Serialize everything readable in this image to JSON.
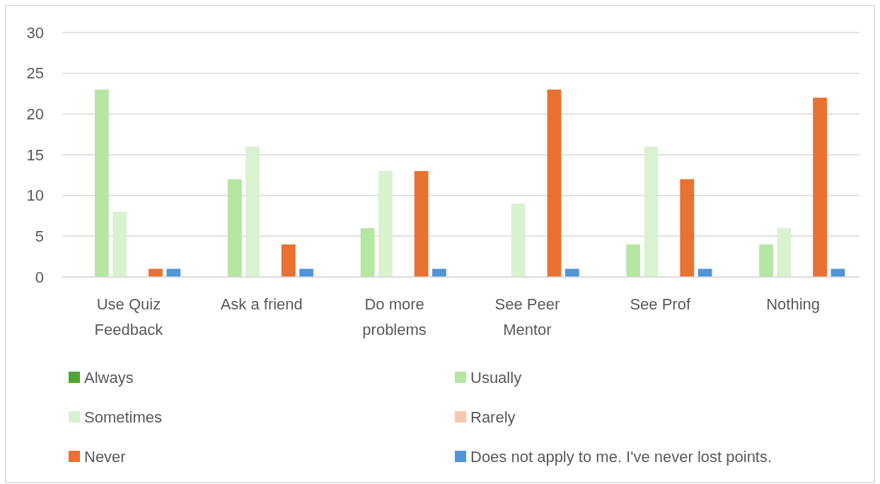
{
  "chart_data": {
    "type": "bar",
    "categories": [
      "Use Quiz Feedback",
      "Ask a friend",
      "Do more problems",
      "See Peer Mentor",
      "See Prof",
      "Nothing"
    ],
    "series": [
      {
        "name": "Always",
        "color": "#4ea72e",
        "values": [
          0,
          0,
          0,
          0,
          0,
          0
        ]
      },
      {
        "name": "Usually",
        "color": "#b5e6a2",
        "values": [
          23,
          12,
          6,
          0,
          4,
          4
        ]
      },
      {
        "name": "Sometimes",
        "color": "#d9f2d0",
        "values": [
          8,
          16,
          13,
          9,
          16,
          6
        ]
      },
      {
        "name": "Rarely",
        "color": "#f7c7ac",
        "values": [
          0,
          0,
          0,
          0,
          0,
          0
        ]
      },
      {
        "name": "Never",
        "color": "#e97132",
        "values": [
          1,
          4,
          13,
          23,
          12,
          22
        ]
      },
      {
        "name": "Does not apply to me. I've never lost points.",
        "color": "#4e95d9",
        "values": [
          1,
          1,
          1,
          1,
          1,
          1
        ]
      }
    ],
    "ylim": [
      0,
      30
    ],
    "yticks": [
      0,
      5,
      10,
      15,
      20,
      25,
      30
    ],
    "grid": "y",
    "legend": "bottom"
  }
}
